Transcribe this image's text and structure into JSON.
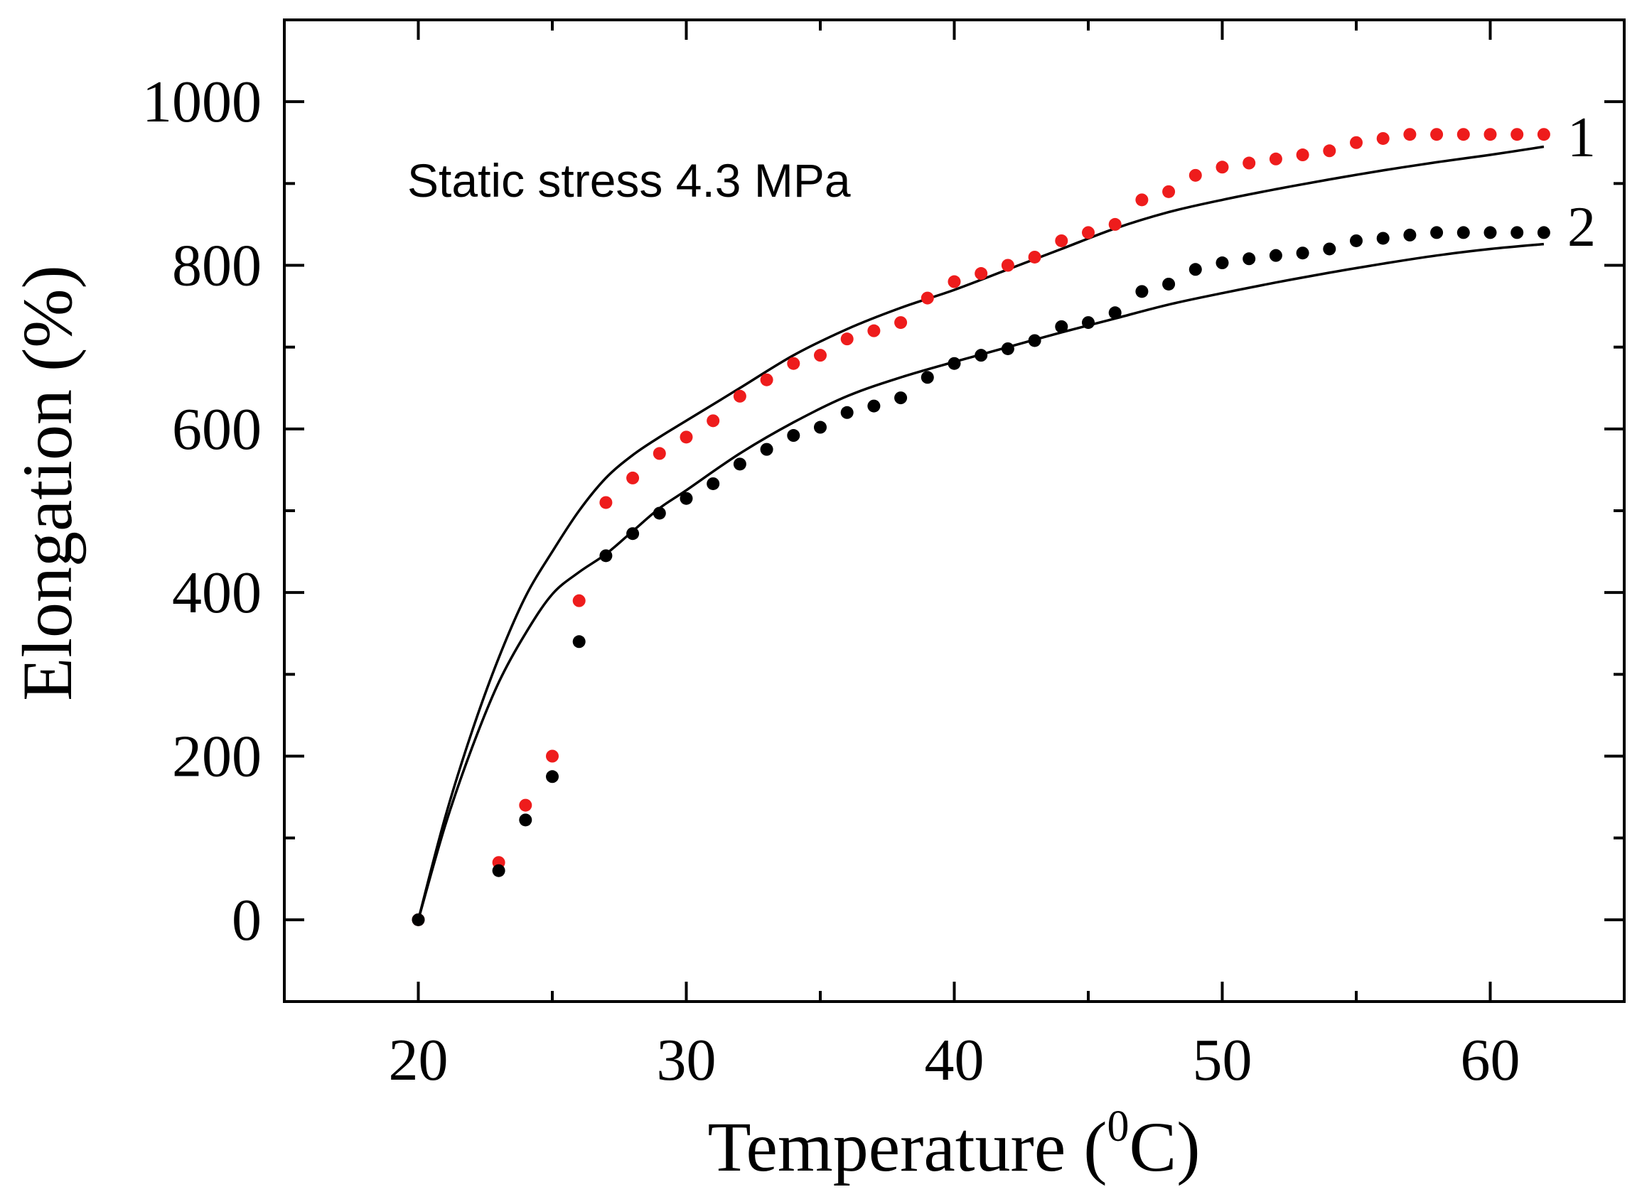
{
  "chart_data": {
    "type": "scatter",
    "xlabel": {
      "main": "Temperature (",
      "sup": "0",
      "tail": "C)"
    },
    "ylabel": "Elongation (%)",
    "annotation": "Static stress 4.3 MPa",
    "xlim": [
      15,
      65
    ],
    "ylim": [
      -100,
      1100
    ],
    "xticks": [
      20,
      30,
      40,
      50,
      60
    ],
    "yticks": [
      0,
      200,
      400,
      600,
      800,
      1000
    ],
    "grid": false,
    "series": [
      {
        "label": "1",
        "color": "#ee1c1c",
        "x": [
          20,
          23,
          24,
          25,
          26,
          27,
          28,
          29,
          30,
          31,
          32,
          33,
          34,
          35,
          36,
          37,
          38,
          39,
          40,
          41,
          42,
          43,
          44,
          45,
          46,
          47,
          48,
          49,
          50,
          51,
          52,
          53,
          54,
          55,
          56,
          57,
          58,
          59,
          60,
          61,
          62
        ],
        "y": [
          0,
          70,
          140,
          200,
          390,
          510,
          540,
          570,
          590,
          610,
          640,
          660,
          680,
          690,
          710,
          720,
          730,
          760,
          780,
          790,
          800,
          810,
          830,
          840,
          850,
          880,
          890,
          910,
          920,
          925,
          930,
          935,
          940,
          950,
          955,
          960,
          960,
          960,
          960,
          960,
          960
        ],
        "fit": {
          "x": [
            20,
            21,
            22,
            23,
            24,
            25,
            26,
            27,
            28,
            29,
            30,
            32,
            34,
            36,
            38,
            40,
            42,
            44,
            46,
            48,
            50,
            52,
            54,
            56,
            58,
            60,
            62
          ],
          "y": [
            0,
            125,
            230,
            320,
            395,
            450,
            500,
            540,
            568,
            590,
            610,
            650,
            690,
            722,
            748,
            770,
            795,
            820,
            845,
            865,
            880,
            893,
            905,
            916,
            926,
            935,
            945
          ]
        }
      },
      {
        "label": "2",
        "color": "#000000",
        "x": [
          20,
          23,
          24,
          25,
          26,
          27,
          28,
          29,
          30,
          31,
          32,
          33,
          34,
          35,
          36,
          37,
          38,
          39,
          40,
          41,
          42,
          43,
          44,
          45,
          46,
          47,
          48,
          49,
          50,
          51,
          52,
          53,
          54,
          55,
          56,
          57,
          58,
          59,
          60,
          61,
          62
        ],
        "y": [
          0,
          60,
          122,
          175,
          340,
          445,
          472,
          497,
          515,
          533,
          557,
          575,
          592,
          602,
          620,
          628,
          638,
          663,
          680,
          690,
          698,
          708,
          725,
          730,
          742,
          768,
          777,
          795,
          803,
          808,
          812,
          815,
          820,
          830,
          833,
          837,
          840,
          840,
          840,
          840,
          840
        ],
        "fit": {
          "x": [
            20,
            21,
            22,
            23,
            24,
            25,
            26,
            27,
            28,
            29,
            30,
            32,
            34,
            36,
            38,
            40,
            42,
            44,
            46,
            48,
            50,
            52,
            54,
            56,
            58,
            60,
            62
          ],
          "y": [
            0,
            115,
            210,
            290,
            350,
            398,
            425,
            447,
            475,
            503,
            525,
            570,
            608,
            640,
            663,
            682,
            700,
            718,
            735,
            752,
            766,
            779,
            791,
            802,
            812,
            820,
            826
          ]
        }
      }
    ]
  }
}
